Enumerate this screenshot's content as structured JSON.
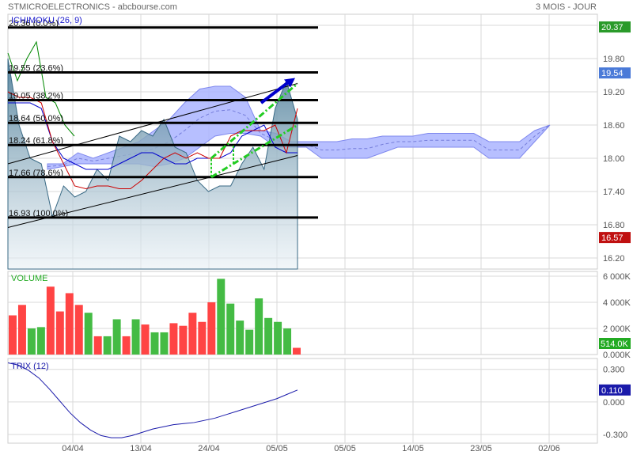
{
  "header": {
    "left": "STMICROELECTRONICS - abcbourse.com",
    "right": "3 MOIS - JOUR"
  },
  "colors": {
    "grid": "#d9d9d9",
    "axis_text": "#555555",
    "fill_price": "#5f8fa8",
    "ichimoku_cloud": "#aab4ff",
    "tenkan": "#cc0000",
    "kijun": "#0000cc",
    "chikou": "#008800",
    "vol_up": "#44bb44",
    "vol_down": "#ff4444",
    "trix": "#1a1aaa",
    "arrow_blue": "#0000cc",
    "arrow_green": "#22cc22",
    "price_tag_green": "#2a9a2a",
    "price_tag_blue": "#4a7ad8",
    "price_tag_red": "#c01010",
    "vol_tag_green": "#22aa22",
    "trix_tag_blue": "#1a1aaa"
  },
  "chart_data": [
    {
      "type": "area",
      "panel": "price",
      "title": "ICHIMOKU (26, 9)",
      "ylim": [
        16.0,
        20.6
      ],
      "y_ticks": [
        "20.40",
        "19.80",
        "19.20",
        "18.60",
        "18.00",
        "17.40",
        "16.80",
        "16.20"
      ],
      "x_ticks": [
        "04/04",
        "13/04",
        "24/04",
        "05/05",
        "05/05",
        "14/05",
        "23/05",
        "02/06"
      ],
      "price_tags": [
        {
          "label": "20.37",
          "value": 20.37,
          "color_key": "price_tag_green"
        },
        {
          "label": "19.54",
          "value": 19.54,
          "color_key": "price_tag_blue"
        },
        {
          "label": "16.57",
          "value": 16.57,
          "color_key": "price_tag_red"
        }
      ],
      "fibonacci": [
        {
          "label": "20.36  (0.0%)",
          "value": 20.36
        },
        {
          "label": "19.55  (23.6%)",
          "value": 19.55
        },
        {
          "label": "19.05  (38.2%)",
          "value": 19.05
        },
        {
          "label": "18.64  (50.0%)",
          "value": 18.64
        },
        {
          "label": "18.24  (61.8%)",
          "value": 18.24
        },
        {
          "label": "17.66  (78.6%)",
          "value": 17.66
        },
        {
          "label": "16.93  (100.0%)",
          "value": 16.93
        }
      ],
      "close": [
        19.8,
        18.6,
        18.0,
        17.9,
        16.95,
        17.5,
        17.3,
        17.4,
        17.8,
        17.6,
        18.4,
        18.3,
        18.5,
        18.4,
        18.7,
        18.2,
        18.1,
        17.6,
        17.4,
        17.5,
        17.5,
        17.9,
        18.2,
        17.8,
        18.9,
        19.4,
        18.7
      ],
      "tenkan": [
        19.2,
        19.1,
        19.1,
        19.0,
        18.3,
        17.9,
        17.5,
        17.45,
        17.5,
        17.5,
        17.45,
        17.45,
        17.6,
        17.8,
        18.0,
        18.1,
        18.0,
        18.1,
        18.0,
        18.0,
        18.4,
        18.5,
        18.5,
        18.5,
        18.6,
        18.1,
        18.9
      ],
      "kijun": [
        19.0,
        19.0,
        19.0,
        18.9,
        18.3,
        18.0,
        17.9,
        17.8,
        17.8,
        17.8,
        17.9,
        18.0,
        18.1,
        18.1,
        18.0,
        17.9,
        17.9,
        18.0,
        18.0,
        18.0,
        18.1,
        18.4,
        18.5,
        18.6,
        18.2,
        18.1,
        18.1
      ],
      "chikou": [
        19.9,
        19.4,
        19.8,
        20.1,
        19.1,
        19.0,
        18.6,
        18.4
      ],
      "cloud_upper": [
        17.9,
        17.9,
        18.1,
        18.0,
        18.1,
        18.2,
        18.3,
        18.5,
        18.7,
        19.0,
        19.25,
        19.3,
        19.3,
        19.1,
        18.5,
        18.45,
        18.3,
        18.3,
        18.3,
        18.3,
        18.35,
        18.35,
        18.4,
        18.4,
        18.4,
        18.45,
        18.45,
        18.45,
        18.45,
        18.3,
        18.3,
        18.3,
        18.5,
        18.6
      ],
      "cloud_lower": [
        17.8,
        17.85,
        17.9,
        17.9,
        17.9,
        17.9,
        17.9,
        17.85,
        17.9,
        18.0,
        18.2,
        18.4,
        18.45,
        18.45,
        18.4,
        18.2,
        18.2,
        18.2,
        18.0,
        18.0,
        18.0,
        18.0,
        18.1,
        18.2,
        18.2,
        18.2,
        18.2,
        18.2,
        18.2,
        18.0,
        18.0,
        18.0,
        18.3,
        18.6
      ]
    },
    {
      "type": "bar",
      "panel": "volume",
      "title": "VOLUME",
      "ylim": [
        0,
        6000
      ],
      "y_ticks": [
        "6 000K",
        "4 000K",
        "2 000K",
        "0.000K"
      ],
      "last_tag": "514.0K",
      "values": [
        3000,
        3800,
        2000,
        2100,
        5200,
        3300,
        4700,
        3800,
        3200,
        1400,
        1400,
        2700,
        1400,
        2700,
        2300,
        1700,
        1700,
        2400,
        2200,
        3200,
        2500,
        4000,
        5800,
        3900,
        2600,
        1900,
        4300,
        2800,
        2500,
        2000,
        514
      ],
      "up": [
        false,
        false,
        true,
        true,
        false,
        false,
        false,
        false,
        true,
        false,
        true,
        true,
        false,
        true,
        false,
        true,
        true,
        false,
        false,
        false,
        false,
        false,
        true,
        true,
        true,
        true,
        true,
        true,
        true,
        true,
        false
      ]
    },
    {
      "type": "line",
      "panel": "trix",
      "title": "TRIX (12)",
      "ylim": [
        -0.38,
        0.4
      ],
      "y_ticks": [
        "0.300",
        "0.000",
        "-0.300"
      ],
      "last_tag": "0.110",
      "values": [
        0.36,
        0.34,
        0.29,
        0.22,
        0.12,
        0.01,
        -0.1,
        -0.19,
        -0.26,
        -0.31,
        -0.33,
        -0.33,
        -0.31,
        -0.28,
        -0.25,
        -0.23,
        -0.21,
        -0.2,
        -0.19,
        -0.17,
        -0.15,
        -0.12,
        -0.09,
        -0.06,
        -0.03,
        0.0,
        0.03,
        0.07,
        0.11
      ]
    }
  ]
}
